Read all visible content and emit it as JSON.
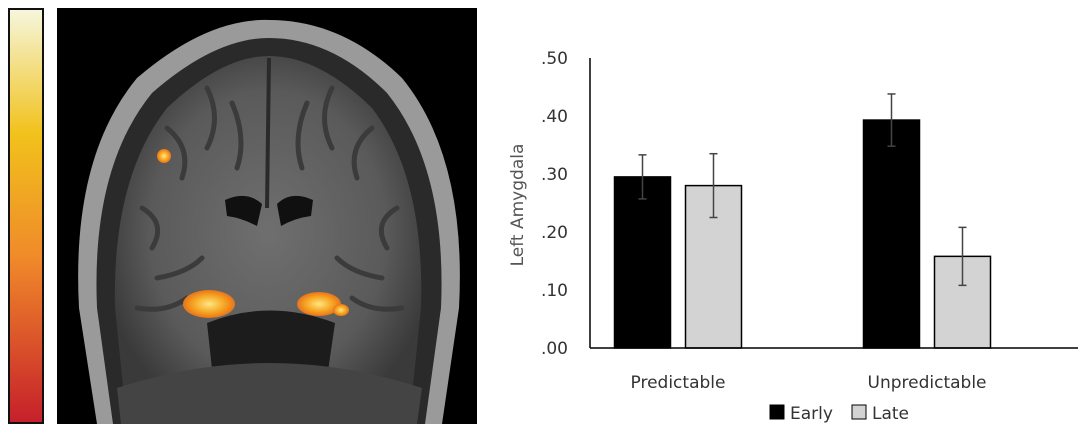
{
  "colors": {
    "scale_top": "#f6f6dc",
    "scale_mid": "#f1c21c",
    "scale_bottom": "#c6202a",
    "activation": "#f6a623",
    "bar_early": "#000000",
    "bar_late": "#d3d3d3",
    "axis": "#000000"
  },
  "brain_image": {
    "icon": "coronal-mri-slice-with-activation"
  },
  "chart_data": {
    "type": "bar",
    "ylabel": "Left Amygdala",
    "xlabel": "",
    "ylim": [
      0,
      0.5
    ],
    "yticks": [
      0,
      0.1,
      0.2,
      0.3,
      0.4,
      0.5
    ],
    "ytick_labels": [
      ".00",
      ".10",
      ".20",
      ".30",
      ".40",
      ".50"
    ],
    "categories": [
      "Predictable",
      "Unpredictable"
    ],
    "series": [
      {
        "name": "Early",
        "color": "#000000",
        "values": [
          0.295,
          0.393
        ],
        "errors": [
          0.038,
          0.045
        ]
      },
      {
        "name": "Late",
        "color": "#d3d3d3",
        "values": [
          0.28,
          0.158
        ],
        "errors": [
          0.055,
          0.05
        ]
      }
    ],
    "legend_position": "bottom-center",
    "grid": false
  }
}
